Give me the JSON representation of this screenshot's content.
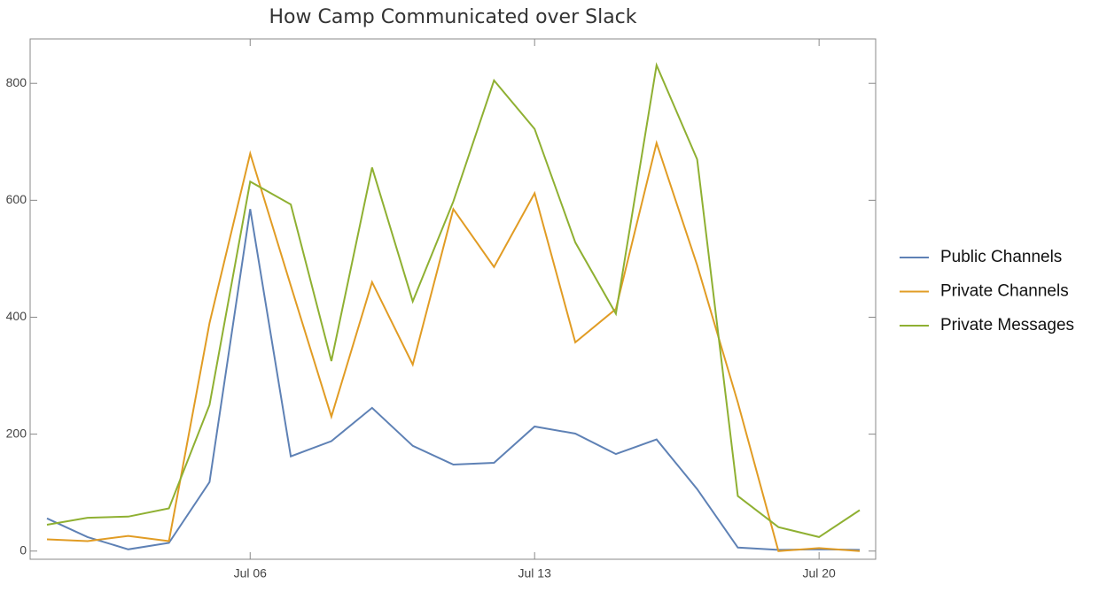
{
  "chart_data": {
    "type": "line",
    "title": "How Camp Communicated over Slack",
    "categories": [
      null,
      null,
      null,
      null,
      null,
      "Jul 06",
      null,
      null,
      null,
      null,
      null,
      null,
      "Jul 13",
      null,
      null,
      null,
      null,
      null,
      null,
      "Jul 20",
      null
    ],
    "series": [
      {
        "name": "Public Channels",
        "color": "#5e81b5",
        "values": [
          56,
          24,
          3,
          14,
          118,
          585,
          162,
          188,
          245,
          180,
          148,
          151,
          213,
          201,
          166,
          191,
          106,
          6,
          2,
          3,
          2
        ]
      },
      {
        "name": "Private Channels",
        "color": "#e19c24",
        "values": [
          20,
          17,
          26,
          17,
          390,
          680,
          454,
          230,
          460,
          319,
          585,
          486,
          612,
          357,
          414,
          698,
          489,
          254,
          0,
          5,
          0
        ]
      },
      {
        "name": "Private Messages",
        "color": "#8fb032",
        "values": [
          45,
          57,
          59,
          73,
          250,
          632,
          593,
          325,
          656,
          427,
          598,
          805,
          722,
          528,
          406,
          831,
          670,
          94,
          41,
          24,
          70
        ]
      }
    ],
    "ylim": [
      -14,
      876
    ],
    "yticks": [
      0,
      200,
      400,
      600,
      800
    ],
    "legend": "right"
  }
}
